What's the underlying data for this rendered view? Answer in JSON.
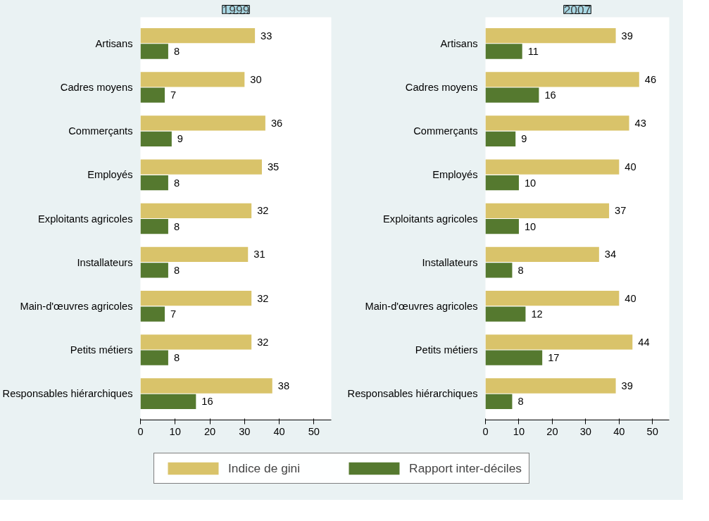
{
  "chart_data": [
    {
      "type": "bar",
      "orientation": "horizontal",
      "title": "1999",
      "categories": [
        "Artisans",
        "Cadres moyens",
        "Commerçants",
        "Employés",
        "Exploitants agricoles",
        "Installateurs",
        "Main-d'œuvres agricoles",
        "Petits métiers",
        "Responsables hiérarchiques"
      ],
      "series": [
        {
          "name": "Indice de gini",
          "color": "#d9c36a",
          "values": [
            33,
            30,
            36,
            35,
            32,
            31,
            32,
            32,
            38
          ]
        },
        {
          "name": "Rapport inter-déciles",
          "color": "#55792f",
          "values": [
            8,
            7,
            9,
            8,
            8,
            8,
            7,
            8,
            16
          ]
        }
      ],
      "xlim": [
        0,
        55
      ],
      "xticks": [
        0,
        10,
        20,
        30,
        40,
        50
      ],
      "data_labels": true,
      "grid": false,
      "legend": "bottom"
    },
    {
      "type": "bar",
      "orientation": "horizontal",
      "title": "2007",
      "categories": [
        "Artisans",
        "Cadres moyens",
        "Commerçants",
        "Employés",
        "Exploitants agricoles",
        "Installateurs",
        "Main-d'œuvres agricoles",
        "Petits métiers",
        "Responsables hiérarchiques"
      ],
      "series": [
        {
          "name": "Indice de gini",
          "color": "#d9c36a",
          "values": [
            39,
            46,
            43,
            40,
            37,
            34,
            40,
            44,
            39
          ]
        },
        {
          "name": "Rapport inter-déciles",
          "color": "#55792f",
          "values": [
            11,
            16,
            9,
            10,
            10,
            8,
            12,
            17,
            8
          ]
        }
      ],
      "xlim": [
        0,
        55
      ],
      "xticks": [
        0,
        10,
        20,
        30,
        40,
        50
      ],
      "data_labels": true,
      "grid": false,
      "legend": "bottom"
    }
  ]
}
